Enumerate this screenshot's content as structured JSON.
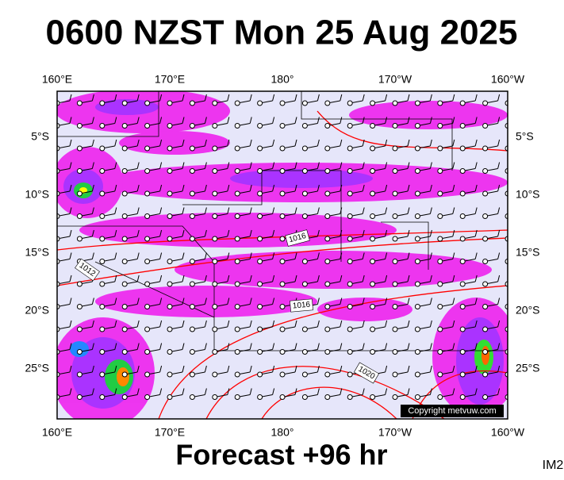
{
  "title": "0600 NZST Mon 25 Aug 2025",
  "map": {
    "lon_labels": [
      "160°E",
      "170°E",
      "180°",
      "170°W",
      "160°W"
    ],
    "lat_labels": [
      "5°S",
      "10°S",
      "15°S",
      "20°S",
      "25°S"
    ],
    "isobar_labels": [
      "1012",
      "1016",
      "1016",
      "1020"
    ],
    "copyright": "Copyright metvuw.com"
  },
  "footer": {
    "forecast": "Forecast +96 hr",
    "code": "IM2"
  }
}
